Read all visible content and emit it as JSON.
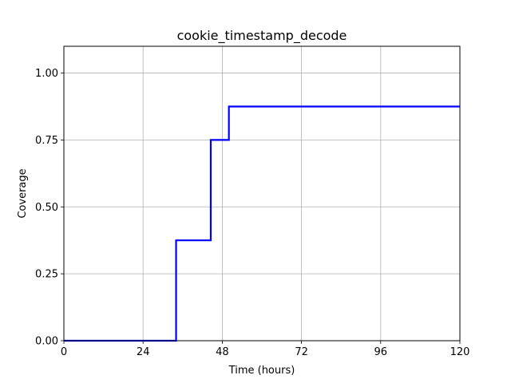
{
  "chart_data": {
    "type": "line",
    "title": "cookie_timestamp_decode",
    "xlabel": "Time (hours)",
    "ylabel": "Coverage",
    "xlim": [
      0,
      120
    ],
    "ylim": [
      0,
      1.1
    ],
    "grid": true,
    "xticks": [
      0,
      24,
      48,
      72,
      96,
      120
    ],
    "xtick_labels": [
      "0",
      "24",
      "48",
      "72",
      "96",
      "120"
    ],
    "yticks": [
      0,
      0.25,
      0.5,
      0.75,
      1.0
    ],
    "ytick_labels": [
      "0.00",
      "0.25",
      "0.50",
      "0.75",
      "1.00"
    ],
    "series": [
      {
        "color": "#0000ff",
        "step": "post",
        "x": [
          0,
          34,
          44.5,
          50,
          120
        ],
        "y": [
          0,
          0.375,
          0.75,
          0.875,
          0.875
        ]
      }
    ]
  }
}
